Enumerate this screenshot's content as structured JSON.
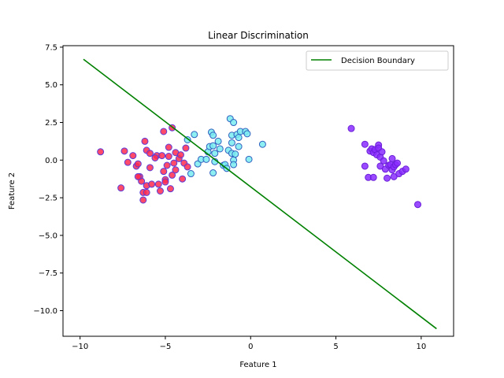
{
  "chart_data": {
    "type": "scatter",
    "title": "Linear Discrimination",
    "xlabel": "Feature 1",
    "ylabel": "Feature 2",
    "xlim": [
      -11.0,
      11.9
    ],
    "ylim": [
      -11.7,
      7.6
    ],
    "xticks": [
      -10,
      -5,
      0,
      5,
      10
    ],
    "xtick_labels": [
      "−10",
      "−5",
      "0",
      "5",
      "10"
    ],
    "yticks": [
      7.5,
      5.0,
      2.5,
      0.0,
      -2.5,
      -5.0,
      -7.5,
      -10.0
    ],
    "ytick_labels": [
      "7.5",
      "5.0",
      "2.5",
      "0.0",
      "−2.5",
      "−5.0",
      "−7.5",
      "−10.0"
    ],
    "grid": false,
    "legend": {
      "position": "top-right",
      "entries": [
        "Decision Boundary"
      ]
    },
    "line": {
      "name": "Decision Boundary",
      "color": "#008000",
      "x": [
        -9.8,
        10.9
      ],
      "y": [
        6.7,
        -11.2
      ]
    },
    "series": [
      {
        "fill": "#ff2b4f",
        "edge": "#5b3bd8",
        "points": [
          [
            -8.8,
            0.55
          ],
          [
            -7.4,
            0.6
          ],
          [
            -7.2,
            -0.15
          ],
          [
            -7.6,
            -1.85
          ],
          [
            -6.9,
            0.3
          ],
          [
            -6.7,
            -0.4
          ],
          [
            -6.6,
            -0.25
          ],
          [
            -6.5,
            -1.1
          ],
          [
            -6.4,
            -1.4
          ],
          [
            -6.3,
            -2.15
          ],
          [
            -6.3,
            -2.65
          ],
          [
            -6.2,
            1.25
          ],
          [
            -6.1,
            0.65
          ],
          [
            -6.1,
            -1.7
          ],
          [
            -6.1,
            -2.15
          ],
          [
            -5.9,
            0.45
          ],
          [
            -5.9,
            -0.5
          ],
          [
            -5.8,
            -1.6
          ],
          [
            -5.5,
            0.3
          ],
          [
            -5.4,
            -1.6
          ],
          [
            -5.3,
            -2.05
          ],
          [
            -5.2,
            0.3
          ],
          [
            -5.1,
            1.9
          ],
          [
            -5.1,
            -0.75
          ],
          [
            -5.0,
            -1.3
          ],
          [
            -5.0,
            -1.45
          ],
          [
            -4.9,
            -0.35
          ],
          [
            -4.8,
            0.25
          ],
          [
            -4.8,
            0.85
          ],
          [
            -4.7,
            -1.9
          ],
          [
            -4.6,
            2.15
          ],
          [
            -4.6,
            -1.0
          ],
          [
            -4.5,
            -0.2
          ],
          [
            -4.4,
            -0.65
          ],
          [
            -4.4,
            0.5
          ],
          [
            -4.2,
            0.1
          ],
          [
            -4.1,
            0.35
          ],
          [
            -4.0,
            -1.25
          ],
          [
            -3.9,
            -0.2
          ],
          [
            -3.8,
            0.8
          ],
          [
            -3.7,
            -0.45
          ],
          [
            -6.6,
            -1.1
          ],
          [
            -5.6,
            0.15
          ]
        ]
      },
      {
        "fill": "#79ecf0",
        "edge": "#3060c0",
        "points": [
          [
            -3.7,
            1.35
          ],
          [
            -3.5,
            -0.9
          ],
          [
            -3.3,
            1.7
          ],
          [
            -3.1,
            -0.25
          ],
          [
            -2.9,
            0.05
          ],
          [
            -2.6,
            0.05
          ],
          [
            -2.5,
            0.55
          ],
          [
            -2.4,
            0.9
          ],
          [
            -2.3,
            1.85
          ],
          [
            -2.2,
            1.65
          ],
          [
            -2.2,
            0.95
          ],
          [
            -2.2,
            -0.85
          ],
          [
            -2.1,
            0.45
          ],
          [
            -2.1,
            -0.1
          ],
          [
            -1.9,
            1.25
          ],
          [
            -1.8,
            0.75
          ],
          [
            -1.6,
            -0.35
          ],
          [
            -1.5,
            -0.3
          ],
          [
            -1.4,
            -0.55
          ],
          [
            -1.3,
            0.65
          ],
          [
            -1.2,
            2.75
          ],
          [
            -1.1,
            0.45
          ],
          [
            -1.1,
            1.65
          ],
          [
            -1.1,
            1.15
          ],
          [
            -1.0,
            2.5
          ],
          [
            -1.0,
            0.0
          ],
          [
            -1.0,
            -0.3
          ],
          [
            -0.9,
            0.4
          ],
          [
            -0.8,
            1.7
          ],
          [
            -0.7,
            1.5
          ],
          [
            -0.7,
            0.9
          ],
          [
            -0.6,
            1.9
          ],
          [
            -0.3,
            1.9
          ],
          [
            -0.2,
            1.75
          ],
          [
            -0.1,
            0.05
          ],
          [
            0.7,
            1.05
          ]
        ]
      },
      {
        "fill": "#8a2bff",
        "edge": "#6a1fd8",
        "points": [
          [
            5.9,
            2.1
          ],
          [
            6.7,
            1.05
          ],
          [
            6.7,
            -0.4
          ],
          [
            6.9,
            -1.15
          ],
          [
            7.0,
            0.6
          ],
          [
            7.1,
            0.75
          ],
          [
            7.2,
            0.5
          ],
          [
            7.2,
            -1.15
          ],
          [
            7.3,
            0.7
          ],
          [
            7.4,
            0.35
          ],
          [
            7.5,
            1.0
          ],
          [
            7.5,
            0.8
          ],
          [
            7.6,
            -0.4
          ],
          [
            7.6,
            0.2
          ],
          [
            7.7,
            0.55
          ],
          [
            7.8,
            -0.05
          ],
          [
            7.9,
            -0.6
          ],
          [
            8.0,
            -1.2
          ],
          [
            8.1,
            -0.35
          ],
          [
            8.2,
            -0.3
          ],
          [
            8.3,
            0.1
          ],
          [
            8.3,
            -0.65
          ],
          [
            8.4,
            -0.45
          ],
          [
            8.4,
            -1.1
          ],
          [
            8.5,
            -0.3
          ],
          [
            8.6,
            -0.2
          ],
          [
            8.7,
            -0.9
          ],
          [
            8.9,
            -0.75
          ],
          [
            9.1,
            -0.6
          ],
          [
            9.8,
            -2.95
          ]
        ]
      }
    ]
  }
}
